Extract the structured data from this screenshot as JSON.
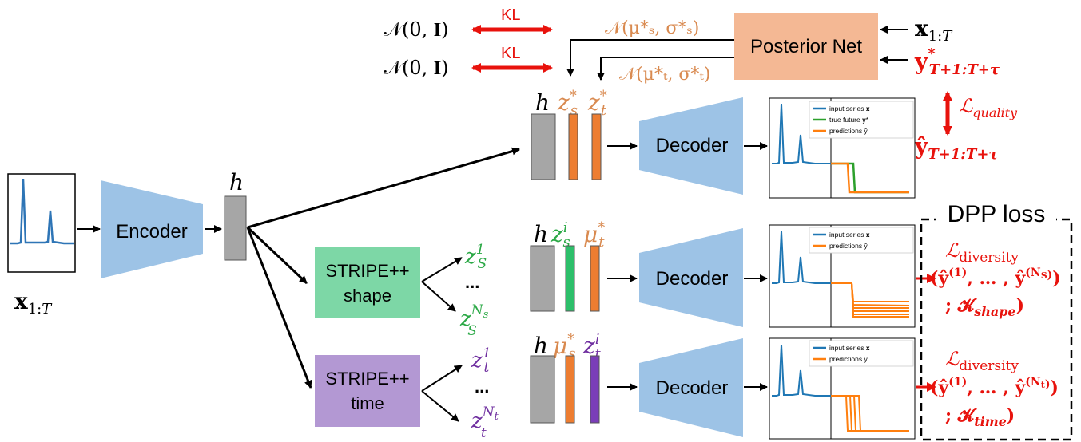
{
  "colors": {
    "red": "#e8120c",
    "orange": "#d98a50",
    "orange_fill": "#ed7d31",
    "green_fill": "#2dbf6a",
    "green_text": "#2aa845",
    "purple_text": "#7030a0",
    "purple_fill": "#7a3db8",
    "blue": "#9dc3e6",
    "gray": "#a6a6a6",
    "posterior_fill": "#f4b894",
    "stripe_shape_fill": "#7dd7a6",
    "stripe_time_fill": "#b398d3",
    "series_blue": "#1f77b4",
    "series_green": "#2ca02c",
    "series_orange": "#ff7f0e"
  },
  "top": {
    "prior_1": "𝒩(0, 𝐈)",
    "prior_2": "𝒩(0, 𝐈)",
    "kl_1": "KL",
    "kl_2": "KL",
    "post_s": "𝒩(μ*ₛ, σ*ₛ)",
    "post_t": "𝒩(μ*ₜ, σ*ₜ)",
    "posterior_net": "Posterior Net",
    "x_in": "𝐱₁:T",
    "y_true": "𝐲*T+1:T+τ",
    "loss_quality": "ℒquality",
    "y_hat": "ŷT+1:T+τ"
  },
  "encoder": {
    "label": "Encoder",
    "input_label": "𝐱₁:T",
    "h_label": "h"
  },
  "branch_top": {
    "h": "h",
    "z1": "z*ₛ",
    "z2": "z*ₜ",
    "decoder": "Decoder",
    "legend": [
      "input series 𝐱",
      "true future 𝐲*",
      "predictions ŷ"
    ]
  },
  "branch_shape": {
    "stripe_line1": "STRIPE++",
    "stripe_line2": "shape",
    "z_first": "z¹ₛ",
    "dots": "...",
    "z_last": "z^Nₛ",
    "h": "h",
    "z1": "zⁱₛ",
    "z2": "μ*ₜ",
    "decoder": "Decoder",
    "legend": [
      "input series 𝐱",
      "predictions ŷ"
    ]
  },
  "branch_time": {
    "stripe_line1": "STRIPE++",
    "stripe_line2": "time",
    "z_first": "z¹ₜ",
    "dots": "...",
    "z_last": "z^Nₜ",
    "h": "h",
    "z1": "μ*ₛ",
    "z2": "zⁱₜ",
    "decoder": "Decoder",
    "legend": [
      "input series 𝐱",
      "predictions ŷ"
    ]
  },
  "dpp": {
    "title": "DPP loss",
    "div1_l1": "ℒdiversity",
    "div1_l2": "(ŷ⁽¹⁾, … , ŷ⁽ᴺˢ⁾)",
    "div1_l3": "; 𝓚shape)",
    "div2_l1": "ℒdiversity",
    "div2_l2": "(ŷ⁽¹⁾, … , ŷ⁽ᴺᵗ⁾)",
    "div2_l3": "; 𝓚time)"
  }
}
